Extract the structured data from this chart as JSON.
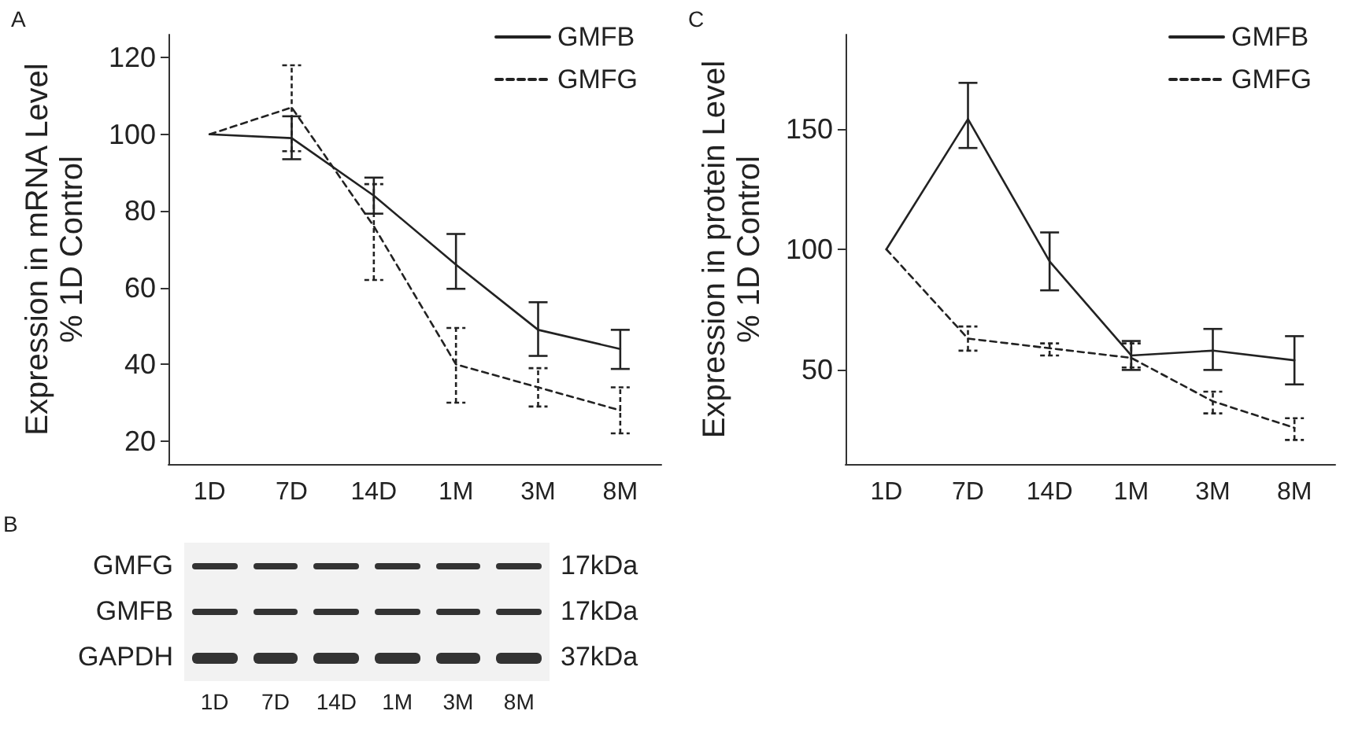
{
  "chart_data": [
    {
      "type": "line",
      "title": "A",
      "ylabel": "Expression in mRNA Level\n% 1D Control",
      "categories": [
        "1D",
        "7D",
        "14D",
        "1M",
        "3M",
        "8M"
      ],
      "ylim": [
        14,
        126
      ],
      "yticks": [
        20,
        40,
        60,
        80,
        100,
        120
      ],
      "grid": false,
      "legend": "top right",
      "marker": "none",
      "series": [
        {
          "name": "GMFB",
          "color": "#222222",
          "line_style": "solid",
          "values": [
            100,
            99,
            84,
            66,
            49,
            44
          ],
          "errors": [
            null,
            [
              93.5,
              104.7
            ],
            [
              79.3,
              88.7
            ],
            [
              59.7,
              74
            ],
            [
              42.2,
              56.2
            ],
            [
              38.8,
              49
            ]
          ]
        },
        {
          "name": "GMFG",
          "color": "#222222",
          "line_style": "dashed",
          "values": [
            100,
            107,
            76,
            40,
            34,
            28
          ],
          "errors": [
            null,
            [
              95.6,
              118
            ],
            [
              62,
              87
            ],
            [
              30,
              49.5
            ],
            [
              29,
              39
            ],
            [
              22,
              34
            ]
          ]
        }
      ]
    },
    {
      "type": "line",
      "title": "C",
      "ylabel": "Expression in protein Level\n% 1D Control",
      "categories": [
        "1D",
        "7D",
        "14D",
        "1M",
        "3M",
        "8M"
      ],
      "ylim": [
        11,
        189
      ],
      "yticks": [
        50,
        100,
        150
      ],
      "grid": false,
      "legend": "top right",
      "marker": "none",
      "series": [
        {
          "name": "GMFB",
          "color": "#222222",
          "line_style": "solid",
          "values": [
            100,
            154,
            95,
            56,
            58,
            54
          ],
          "errors": [
            null,
            [
              142,
              169
            ],
            [
              83,
              107
            ],
            [
              50,
              62
            ],
            [
              50,
              67
            ],
            [
              44,
              64
            ]
          ]
        },
        {
          "name": "GMFG",
          "color": "#222222",
          "line_style": "dashed",
          "values": [
            100,
            63,
            59,
            55,
            37,
            26
          ],
          "errors": [
            null,
            [
              58,
              68
            ],
            [
              56,
              61
            ],
            [
              51,
              61
            ],
            [
              32,
              41
            ],
            [
              21,
              30
            ]
          ]
        }
      ]
    },
    {
      "type": "other",
      "title": "B",
      "categories": [
        "1D",
        "7D",
        "14D",
        "1M",
        "3M",
        "8M"
      ],
      "y_categories": [
        "GMFG",
        "GMFB",
        "GAPDH"
      ],
      "y2_categories": [
        "17kDa",
        "17kDa",
        "37kDa"
      ]
    }
  ]
}
